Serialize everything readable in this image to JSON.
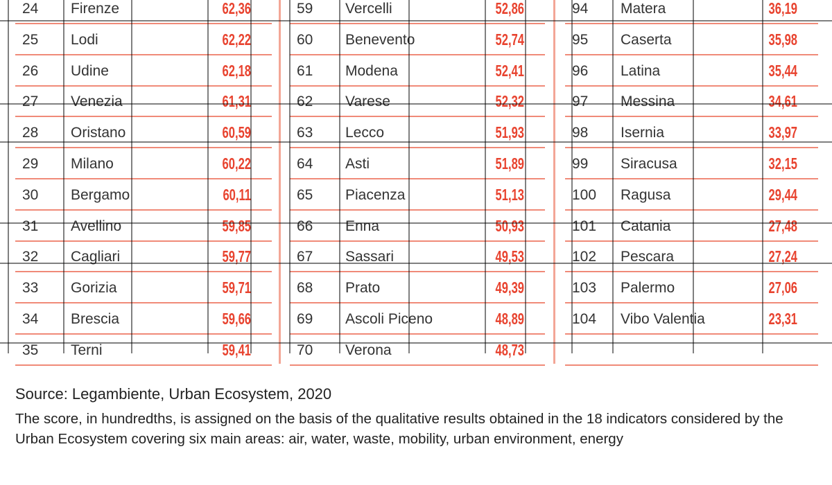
{
  "table": {
    "columns": [
      {
        "rows": [
          [
            "24",
            "Firenze",
            "62,36"
          ],
          [
            "25",
            "Lodi",
            "62,22"
          ],
          [
            "26",
            "Udine",
            "62,18"
          ],
          [
            "27",
            "Venezia",
            "61,31"
          ],
          [
            "28",
            "Oristano",
            "60,59"
          ],
          [
            "29",
            "Milano",
            "60,22"
          ],
          [
            "30",
            "Bergamo",
            "60,11"
          ],
          [
            "31",
            "Avellino",
            "59,85"
          ],
          [
            "32",
            "Cagliari",
            "59,77"
          ],
          [
            "33",
            "Gorizia",
            "59,71"
          ],
          [
            "34",
            "Brescia",
            "59,66"
          ],
          [
            "35",
            "Terni",
            "59,41"
          ]
        ]
      },
      {
        "rows": [
          [
            "59",
            "Vercelli",
            "52,86"
          ],
          [
            "60",
            "Benevento",
            "52,74"
          ],
          [
            "61",
            "Modena",
            "52,41"
          ],
          [
            "62",
            "Varese",
            "52,32"
          ],
          [
            "63",
            "Lecco",
            "51,93"
          ],
          [
            "64",
            "Asti",
            "51,89"
          ],
          [
            "65",
            "Piacenza",
            "51,13"
          ],
          [
            "66",
            "Enna",
            "50,93"
          ],
          [
            "67",
            "Sassari",
            "49,53"
          ],
          [
            "68",
            "Prato",
            "49,39"
          ],
          [
            "69",
            "Ascoli Piceno",
            "48,89"
          ],
          [
            "70",
            "Verona",
            "48,73"
          ]
        ]
      },
      {
        "rows": [
          [
            "94",
            "Matera",
            "36,19"
          ],
          [
            "95",
            "Caserta",
            "35,98"
          ],
          [
            "96",
            "Latina",
            "35,44"
          ],
          [
            "97",
            "Messina",
            "34,61"
          ],
          [
            "98",
            "Isernia",
            "33,97"
          ],
          [
            "99",
            "Siracusa",
            "32,15"
          ],
          [
            "100",
            "Ragusa",
            "29,44"
          ],
          [
            "101",
            "Catania",
            "27,48"
          ],
          [
            "102",
            "Pescara",
            "27,24"
          ],
          [
            "103",
            "Palermo",
            "27,06"
          ],
          [
            "104",
            "Vibo Valentia",
            "23,31"
          ]
        ]
      }
    ]
  },
  "footer": {
    "source": "Source: Legambiente, Urban Ecosystem, 2020",
    "note": "The score, in hundredths, is assigned on the basis of the qualitative results obtained in the 18 indicators considered by the Urban Ecosystem covering six main areas: air, water, waste, mobility, urban environment, energy"
  }
}
